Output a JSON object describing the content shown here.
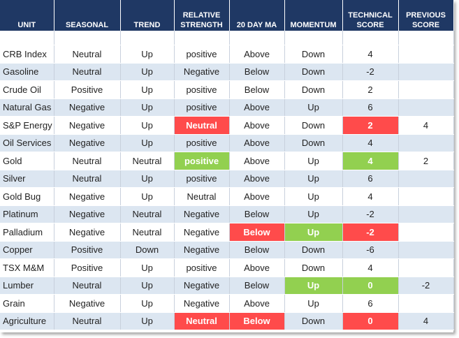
{
  "colors": {
    "header_bg": "#1f3864",
    "band_bg": "#dce6f1",
    "red": "#ff4b4b",
    "green": "#92d050"
  },
  "headers": [
    "UNIT",
    "SEASONAL",
    "TREND",
    "RELATIVE STRENGTH",
    "20 DAY MA",
    "MOMENTUM",
    "TECHNICAL SCORE",
    "PREVIOUS SCORE"
  ],
  "rows": [
    {
      "unit": "CRB Index",
      "seasonal": "Neutral",
      "trend": "Up",
      "rs": "positive",
      "ma": "Above",
      "momentum": "Down",
      "score": "4",
      "prev": ""
    },
    {
      "unit": "Gasoline",
      "seasonal": "Neutral",
      "trend": "Up",
      "rs": "Negative",
      "ma": "Below",
      "momentum": "Down",
      "score": "-2",
      "prev": ""
    },
    {
      "unit": "Crude Oil",
      "seasonal": "Positive",
      "trend": "Up",
      "rs": "positive",
      "ma": "Below",
      "momentum": "Down",
      "score": "2",
      "prev": ""
    },
    {
      "unit": "Natural Gas",
      "seasonal": "Negative",
      "trend": "Up",
      "rs": "positive",
      "ma": "Above",
      "momentum": "Up",
      "score": "6",
      "prev": ""
    },
    {
      "unit": "S&P Energy",
      "seasonal": "Negative",
      "trend": "Up",
      "rs": "Neutral",
      "ma": "Above",
      "momentum": "Down",
      "score": "2",
      "prev": "4"
    },
    {
      "unit": "Oil Services",
      "seasonal": "Negative",
      "trend": "Up",
      "rs": "positive",
      "ma": "Above",
      "momentum": "Down",
      "score": "4",
      "prev": ""
    },
    {
      "unit": "Gold",
      "seasonal": "Neutral",
      "trend": "Neutral",
      "rs": "positive",
      "ma": "Above",
      "momentum": "Up",
      "score": "4",
      "prev": "2"
    },
    {
      "unit": "Silver",
      "seasonal": "Neutral",
      "trend": "Up",
      "rs": "positive",
      "ma": "Above",
      "momentum": "Up",
      "score": "6",
      "prev": ""
    },
    {
      "unit": "Gold Bug",
      "seasonal": "Negative",
      "trend": "Up",
      "rs": "Neutral",
      "ma": "Above",
      "momentum": "Up",
      "score": "4",
      "prev": ""
    },
    {
      "unit": "Platinum",
      "seasonal": "Negative",
      "trend": "Neutral",
      "rs": "Negative",
      "ma": "Below",
      "momentum": "Up",
      "score": "-2",
      "prev": ""
    },
    {
      "unit": "Palladium",
      "seasonal": "Negative",
      "trend": "Neutral",
      "rs": "Negative",
      "ma": "Below",
      "momentum": "Up",
      "score": "-2",
      "prev": ""
    },
    {
      "unit": "Copper",
      "seasonal": "Positive",
      "trend": "Down",
      "rs": "Negative",
      "ma": "Below",
      "momentum": "Down",
      "score": "-6",
      "prev": ""
    },
    {
      "unit": "TSX M&M",
      "seasonal": "Positive",
      "trend": "Up",
      "rs": "positive",
      "ma": "Above",
      "momentum": "Down",
      "score": "4",
      "prev": ""
    },
    {
      "unit": "Lumber",
      "seasonal": "Neutral",
      "trend": "Up",
      "rs": "Negative",
      "ma": "Below",
      "momentum": "Up",
      "score": "0",
      "prev": "-2"
    },
    {
      "unit": "Grain",
      "seasonal": "Negative",
      "trend": "Up",
      "rs": "Negative",
      "ma": "Above",
      "momentum": "Up",
      "score": "6",
      "prev": ""
    },
    {
      "unit": "Agriculture",
      "seasonal": "Neutral",
      "trend": "Up",
      "rs": "Neutral",
      "ma": "Below",
      "momentum": "Down",
      "score": "0",
      "prev": "4"
    }
  ]
}
